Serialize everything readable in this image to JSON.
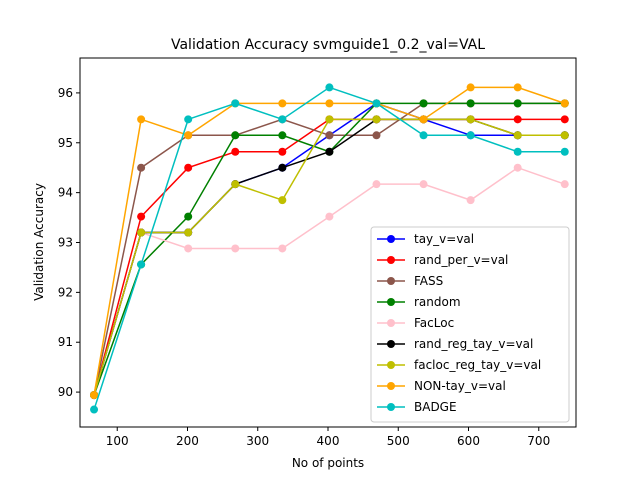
{
  "chart_data": {
    "type": "line",
    "title": "Validation Accuracy svmguide1_0.2_val=VAL",
    "xlabel": "No of points",
    "ylabel": "Validation Accuracy",
    "xlim": [
      47,
      753
    ],
    "ylim": [
      89.3,
      96.7
    ],
    "xticks": [
      100,
      200,
      300,
      400,
      500,
      600,
      700
    ],
    "yticks": [
      90,
      91,
      92,
      93,
      94,
      95,
      96
    ],
    "grid": false,
    "legend_position": "lower-right",
    "marker": "circle",
    "x": [
      67,
      134,
      201,
      268,
      335,
      402,
      469,
      536,
      603,
      670,
      737
    ],
    "series": [
      {
        "name": "tay_v=val",
        "color": "#0000ff",
        "values": [
          89.94,
          93.2,
          93.2,
          94.17,
          94.5,
          95.15,
          95.79,
          95.47,
          95.15,
          95.15,
          95.15
        ]
      },
      {
        "name": "rand_per_v=val",
        "color": "#ff0000",
        "values": [
          89.94,
          93.52,
          94.5,
          94.82,
          94.82,
          95.47,
          95.47,
          95.47,
          95.47,
          95.47,
          95.47
        ]
      },
      {
        "name": "FASS",
        "color": "#8c564b",
        "values": [
          89.94,
          94.5,
          95.15,
          95.15,
          95.47,
          95.15,
          95.15,
          95.79,
          95.79,
          95.79,
          95.79
        ]
      },
      {
        "name": "random",
        "color": "#008000",
        "values": [
          89.94,
          92.56,
          93.52,
          95.15,
          95.15,
          94.82,
          95.79,
          95.79,
          95.79,
          95.79,
          95.79
        ]
      },
      {
        "name": "FacLoc",
        "color": "#ffc0cb",
        "values": [
          89.94,
          93.2,
          92.88,
          92.88,
          92.88,
          93.52,
          94.17,
          94.17,
          93.85,
          94.5,
          94.17
        ]
      },
      {
        "name": "rand_reg_tay_v=val",
        "color": "#000000",
        "values": [
          89.94,
          93.2,
          93.2,
          94.17,
          94.5,
          94.82,
          95.47,
          95.47,
          95.47,
          95.15,
          95.15
        ]
      },
      {
        "name": "facloc_reg_tay_v=val",
        "color": "#bfbf00",
        "values": [
          89.94,
          93.2,
          93.2,
          94.17,
          93.85,
          95.47,
          95.47,
          95.47,
          95.47,
          95.15,
          95.15
        ]
      },
      {
        "name": "NON-tay_v=val",
        "color": "#ffa500",
        "values": [
          89.94,
          95.47,
          95.15,
          95.79,
          95.79,
          95.79,
          95.79,
          95.47,
          96.11,
          96.11,
          95.79
        ]
      },
      {
        "name": "BADGE",
        "color": "#00bfbf",
        "values": [
          89.65,
          92.56,
          95.47,
          95.79,
          95.47,
          96.11,
          95.79,
          95.15,
          95.15,
          94.82,
          94.82
        ]
      }
    ]
  }
}
